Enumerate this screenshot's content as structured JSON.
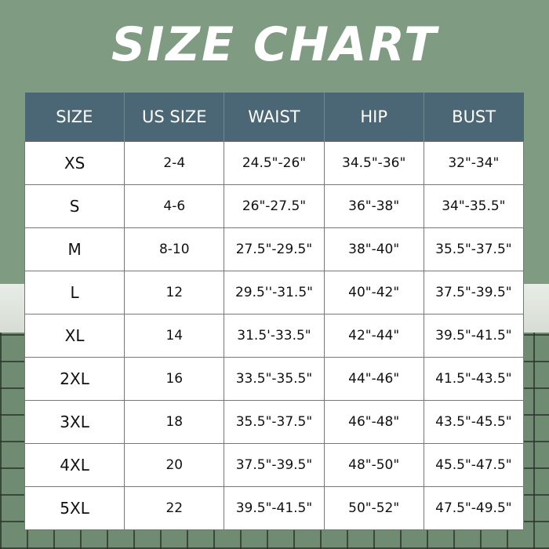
{
  "title": "SIZE CHART",
  "colors": {
    "header": "#4b6674",
    "background": "#7f9b81"
  },
  "headers": [
    "SIZE",
    "US SIZE",
    "WAIST",
    "HIP",
    "BUST"
  ],
  "rows": [
    [
      "XS",
      "2-4",
      "24.5\"-26\"",
      "34.5\"-36\"",
      "32\"-34\""
    ],
    [
      "S",
      "4-6",
      "26\"-27.5\"",
      "36\"-38\"",
      "34\"-35.5\""
    ],
    [
      "M",
      "8-10",
      "27.5\"-29.5\"",
      "38\"-40\"",
      "35.5\"-37.5\""
    ],
    [
      "L",
      "12",
      "29.5''-31.5\"",
      "40\"-42\"",
      "37.5\"-39.5\""
    ],
    [
      "XL",
      "14",
      "31.5'-33.5\"",
      "42\"-44\"",
      "39.5\"-41.5\""
    ],
    [
      "2XL",
      "16",
      "33.5\"-35.5\"",
      "44\"-46\"",
      "41.5\"-43.5\""
    ],
    [
      "3XL",
      "18",
      "35.5\"-37.5\"",
      "46\"-48\"",
      "43.5\"-45.5\""
    ],
    [
      "4XL",
      "20",
      "37.5\"-39.5\"",
      "48\"-50\"",
      "45.5\"-47.5\""
    ],
    [
      "5XL",
      "22",
      "39.5\"-41.5\"",
      "50\"-52\"",
      "47.5\"-49.5\""
    ]
  ]
}
